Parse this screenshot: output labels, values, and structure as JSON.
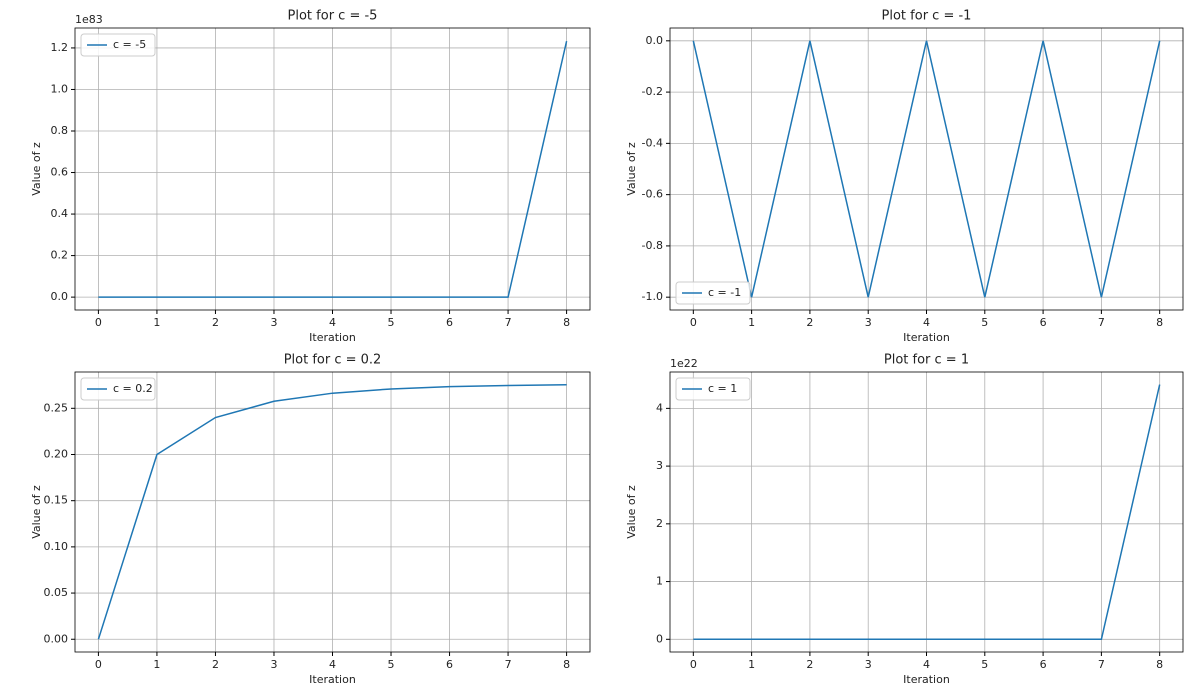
{
  "chart_data": [
    {
      "type": "line",
      "title": "Plot for c = -5",
      "xlabel": "Iteration",
      "ylabel": "Value of z",
      "y_offset_label": "1e83",
      "x": [
        0,
        1,
        2,
        3,
        4,
        5,
        6,
        7,
        8
      ],
      "series": [
        {
          "name": "c = -5",
          "color": "#1f77b4",
          "values": [
            0,
            -5,
            20,
            395,
            156020,
            24342240395,
            5.9254e+20,
            3.511e+41,
            1.2327e+83
          ]
        }
      ],
      "xlim": [
        -0.4,
        8.4
      ],
      "xticks": [
        0,
        1,
        2,
        3,
        4,
        5,
        6,
        7,
        8
      ],
      "ylim": [
        -6.2e+81,
        1.296e+83
      ],
      "yticks": [
        {
          "value": 0,
          "label": "0.0"
        },
        {
          "value": 2e+82,
          "label": "0.2"
        },
        {
          "value": 4e+82,
          "label": "0.4"
        },
        {
          "value": 6e+82,
          "label": "0.6"
        },
        {
          "value": 8e+82,
          "label": "0.8"
        },
        {
          "value": 1e+83,
          "label": "1.0"
        },
        {
          "value": 1.2e+83,
          "label": "1.2"
        }
      ],
      "grid": true,
      "legend": "upper left"
    },
    {
      "type": "line",
      "title": "Plot for c = -1",
      "xlabel": "Iteration",
      "ylabel": "Value of z",
      "x": [
        0,
        1,
        2,
        3,
        4,
        5,
        6,
        7,
        8
      ],
      "series": [
        {
          "name": "c = -1",
          "color": "#1f77b4",
          "values": [
            0,
            -1,
            0,
            -1,
            0,
            -1,
            0,
            -1,
            0
          ]
        }
      ],
      "xlim": [
        -0.4,
        8.4
      ],
      "xticks": [
        0,
        1,
        2,
        3,
        4,
        5,
        6,
        7,
        8
      ],
      "ylim": [
        -1.05,
        0.05
      ],
      "yticks": [
        {
          "value": 0,
          "label": "0.0"
        },
        {
          "value": -0.2,
          "label": "-0.2"
        },
        {
          "value": -0.4,
          "label": "-0.4"
        },
        {
          "value": -0.6,
          "label": "-0.6"
        },
        {
          "value": -0.8,
          "label": "-0.8"
        },
        {
          "value": -1,
          "label": "-1.0"
        }
      ],
      "grid": true,
      "legend": "lower left"
    },
    {
      "type": "line",
      "title": "Plot for c = 0.2",
      "xlabel": "Iteration",
      "ylabel": "Value of z",
      "x": [
        0,
        1,
        2,
        3,
        4,
        5,
        6,
        7,
        8
      ],
      "series": [
        {
          "name": "c = 0.2",
          "color": "#1f77b4",
          "values": [
            0,
            0.2,
            0.24,
            0.2576,
            0.26636,
            0.27095,
            0.27341,
            0.27475,
            0.27549
          ]
        }
      ],
      "xlim": [
        -0.4,
        8.4
      ],
      "xticks": [
        0,
        1,
        2,
        3,
        4,
        5,
        6,
        7,
        8
      ],
      "ylim": [
        -0.0138,
        0.2893
      ],
      "yticks": [
        {
          "value": 0,
          "label": "0.00"
        },
        {
          "value": 0.05,
          "label": "0.05"
        },
        {
          "value": 0.1,
          "label": "0.10"
        },
        {
          "value": 0.15,
          "label": "0.15"
        },
        {
          "value": 0.2,
          "label": "0.20"
        },
        {
          "value": 0.25,
          "label": "0.25"
        }
      ],
      "grid": true,
      "legend": "upper left"
    },
    {
      "type": "line",
      "title": "Plot for c = 1",
      "xlabel": "Iteration",
      "ylabel": "Value of z",
      "y_offset_label": "1e22",
      "x": [
        0,
        1,
        2,
        3,
        4,
        5,
        6,
        7,
        8
      ],
      "series": [
        {
          "name": "c = 1",
          "color": "#1f77b4",
          "values": [
            0,
            1,
            2,
            5,
            26,
            677,
            458330,
            210066388901,
            4.4128e+22
          ]
        }
      ],
      "xlim": [
        -0.4,
        8.4
      ],
      "xticks": [
        0,
        1,
        2,
        3,
        4,
        5,
        6,
        7,
        8
      ],
      "ylim": [
        -2.2e+21,
        4.63e+22
      ],
      "yticks": [
        {
          "value": 0,
          "label": "0"
        },
        {
          "value": 1e+22,
          "label": "1"
        },
        {
          "value": 2e+22,
          "label": "2"
        },
        {
          "value": 3e+22,
          "label": "3"
        },
        {
          "value": 4e+22,
          "label": "4"
        }
      ],
      "grid": true,
      "legend": "upper left"
    }
  ]
}
